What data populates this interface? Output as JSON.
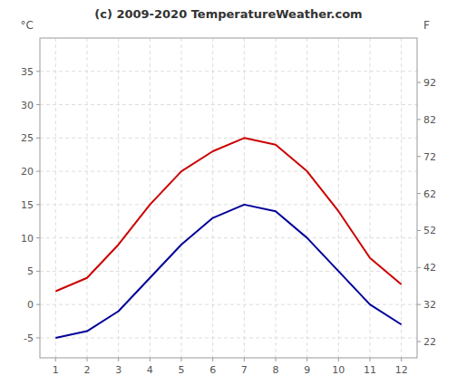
{
  "chart_data": {
    "type": "line",
    "title": "(c) 2009-2020 TemperatureWeather.com",
    "y_label": "°C",
    "y2_label": "F",
    "x": [
      1,
      2,
      3,
      4,
      5,
      6,
      7,
      8,
      9,
      10,
      11,
      12
    ],
    "series": [
      {
        "color": "#cc0000",
        "values": [
          2,
          4,
          9,
          15,
          20,
          23,
          25,
          24,
          20,
          14,
          7,
          3
        ]
      },
      {
        "color": "#000099",
        "values": [
          -5,
          -4,
          -1,
          4,
          9,
          13,
          15,
          14,
          10,
          5,
          0,
          -3
        ]
      }
    ],
    "xlim": [
      0.5,
      12.5
    ],
    "xticks": [
      1,
      2,
      3,
      4,
      5,
      6,
      7,
      8,
      9,
      10,
      11,
      12
    ],
    "ylim": [
      -8,
      40
    ],
    "yticks": [
      -5,
      0,
      5,
      10,
      15,
      20,
      25,
      30,
      35
    ],
    "y2lim": [
      17.6,
      104
    ],
    "y2ticks": [
      22,
      32,
      42,
      52,
      62,
      72,
      82,
      92
    ],
    "grid": true
  }
}
